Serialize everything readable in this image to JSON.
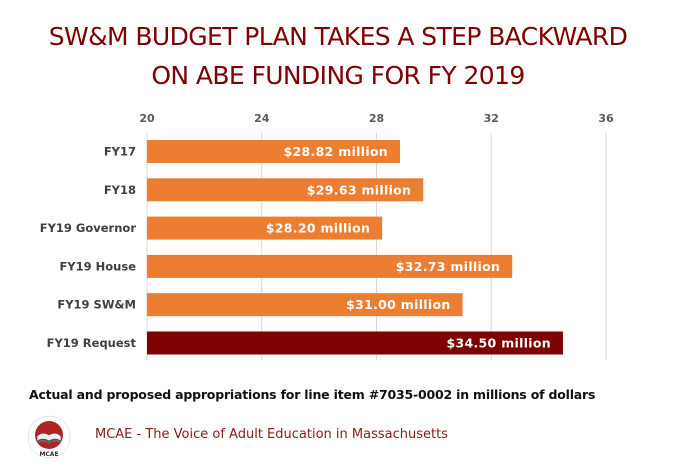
{
  "chart_data": {
    "type": "bar",
    "orientation": "horizontal",
    "title": "SW&M BUDGET PLAN TAKES A STEP BACKWARD ON ABE FUNDING FOR FY 2019",
    "title_lines": [
      "SW&M BUDGET PLAN TAKES A STEP BACKWARD",
      "ON ABE FUNDING FOR FY 2019"
    ],
    "categories": [
      "FY17",
      "FY18",
      "FY19 Governor",
      "FY19 House",
      "FY19 SW&M",
      "FY19 Request"
    ],
    "values": [
      28.82,
      29.63,
      28.2,
      32.73,
      31.0,
      34.5
    ],
    "data_labels": [
      "$28.82 million",
      "$29.63 million",
      "$28.20 million",
      "$32.73 million",
      "$31.00 million",
      "$34.50 million"
    ],
    "bar_colors": [
      "#ed7d31",
      "#ed7d31",
      "#ed7d31",
      "#ed7d31",
      "#ed7d31",
      "#7f0000"
    ],
    "xlim": [
      20,
      36
    ],
    "xticks": [
      20,
      24,
      28,
      32,
      36
    ],
    "xtick_labels": [
      "20",
      "24",
      "28",
      "32",
      "36"
    ],
    "xaxis_position": "top",
    "grid": true,
    "xlabel": "Actual and proposed appropriations for line item #7035-0002 in millions of dollars",
    "ylabel": ""
  },
  "footer": {
    "caption": "Actual and proposed appropriations for line item #7035-0002 in millions of dollars",
    "org_text": "MCAE - The Voice of Adult Education in Massachusetts",
    "logo_text": "MCAE"
  },
  "colors": {
    "title": "#7f0000",
    "bar_default": "#ed7d31",
    "bar_highlight": "#7f0000",
    "gridline": "#d9d9d9"
  }
}
